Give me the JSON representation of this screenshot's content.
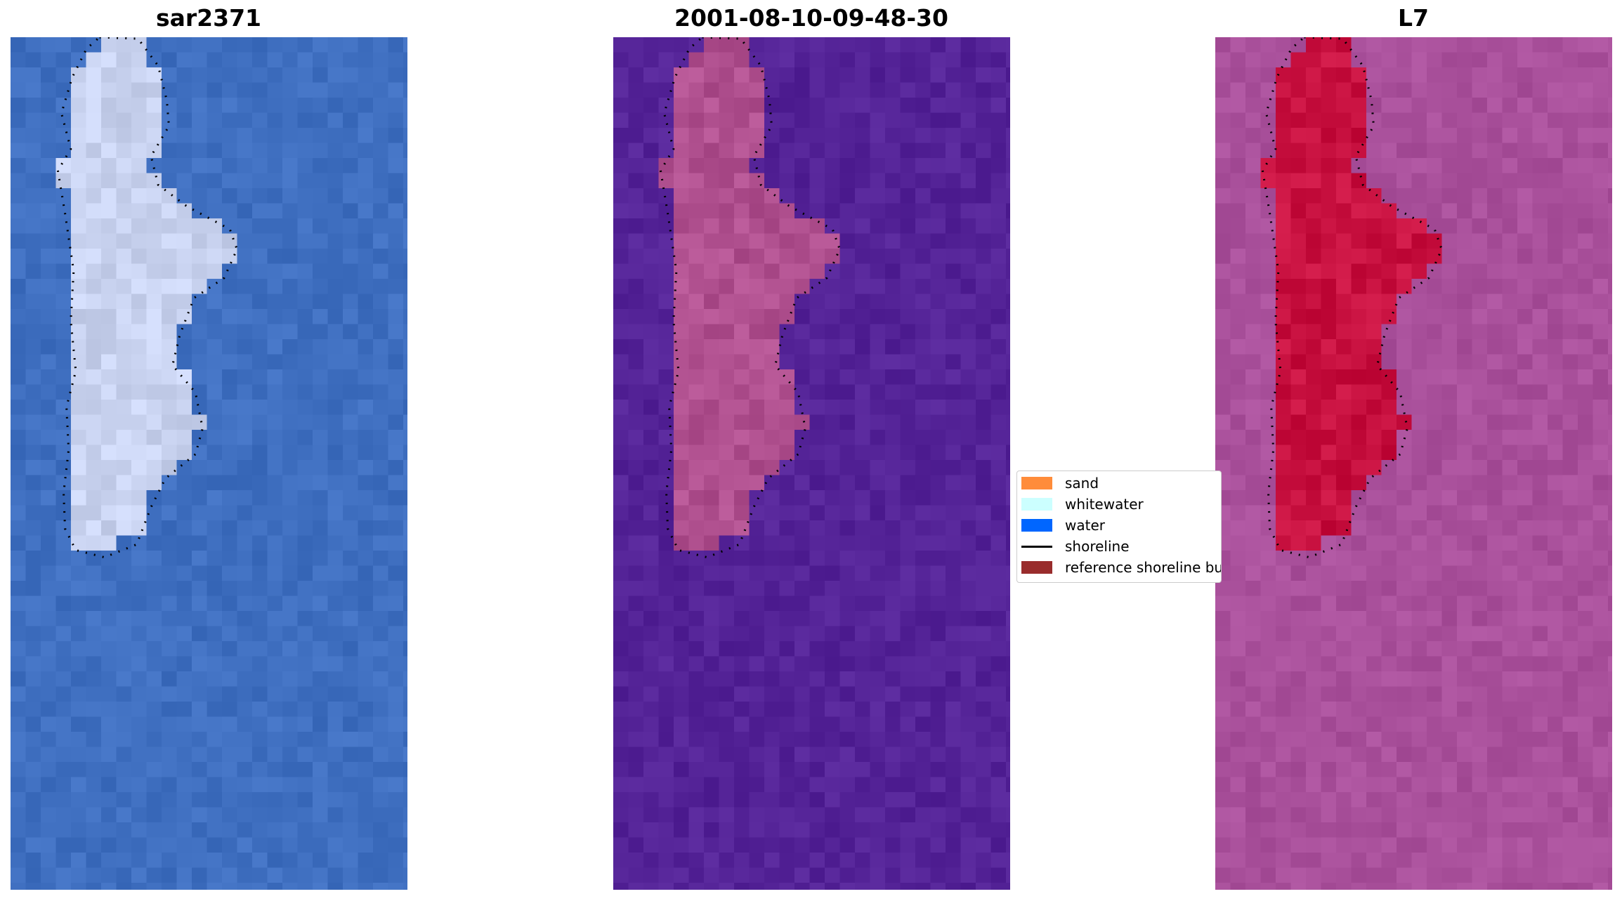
{
  "panels": [
    {
      "id": "rgb",
      "title": "sar2371"
    },
    {
      "id": "classified",
      "title": "2001-08-10-09-48-30"
    },
    {
      "id": "index",
      "title": "L7"
    }
  ],
  "legend": {
    "items": [
      {
        "label": "sand",
        "color": "#ff8c3a",
        "kind": "patch"
      },
      {
        "label": "whitewater",
        "color": "#ccffff",
        "kind": "patch"
      },
      {
        "label": "water",
        "color": "#0066ff",
        "kind": "patch"
      },
      {
        "label": "shoreline",
        "color": "#000000",
        "kind": "line"
      },
      {
        "label": "reference shoreline buffer",
        "color": "#992c2c",
        "kind": "patch"
      }
    ]
  },
  "colors": {
    "rgb_water": "#3f6fc0",
    "rgb_land": "#c8d2ef",
    "classified_background": "#542397",
    "classified_land": "#b0508f",
    "classified_buffer": "#c0393f",
    "index_background": "#a9509b",
    "index_land": "#c7103f"
  }
}
